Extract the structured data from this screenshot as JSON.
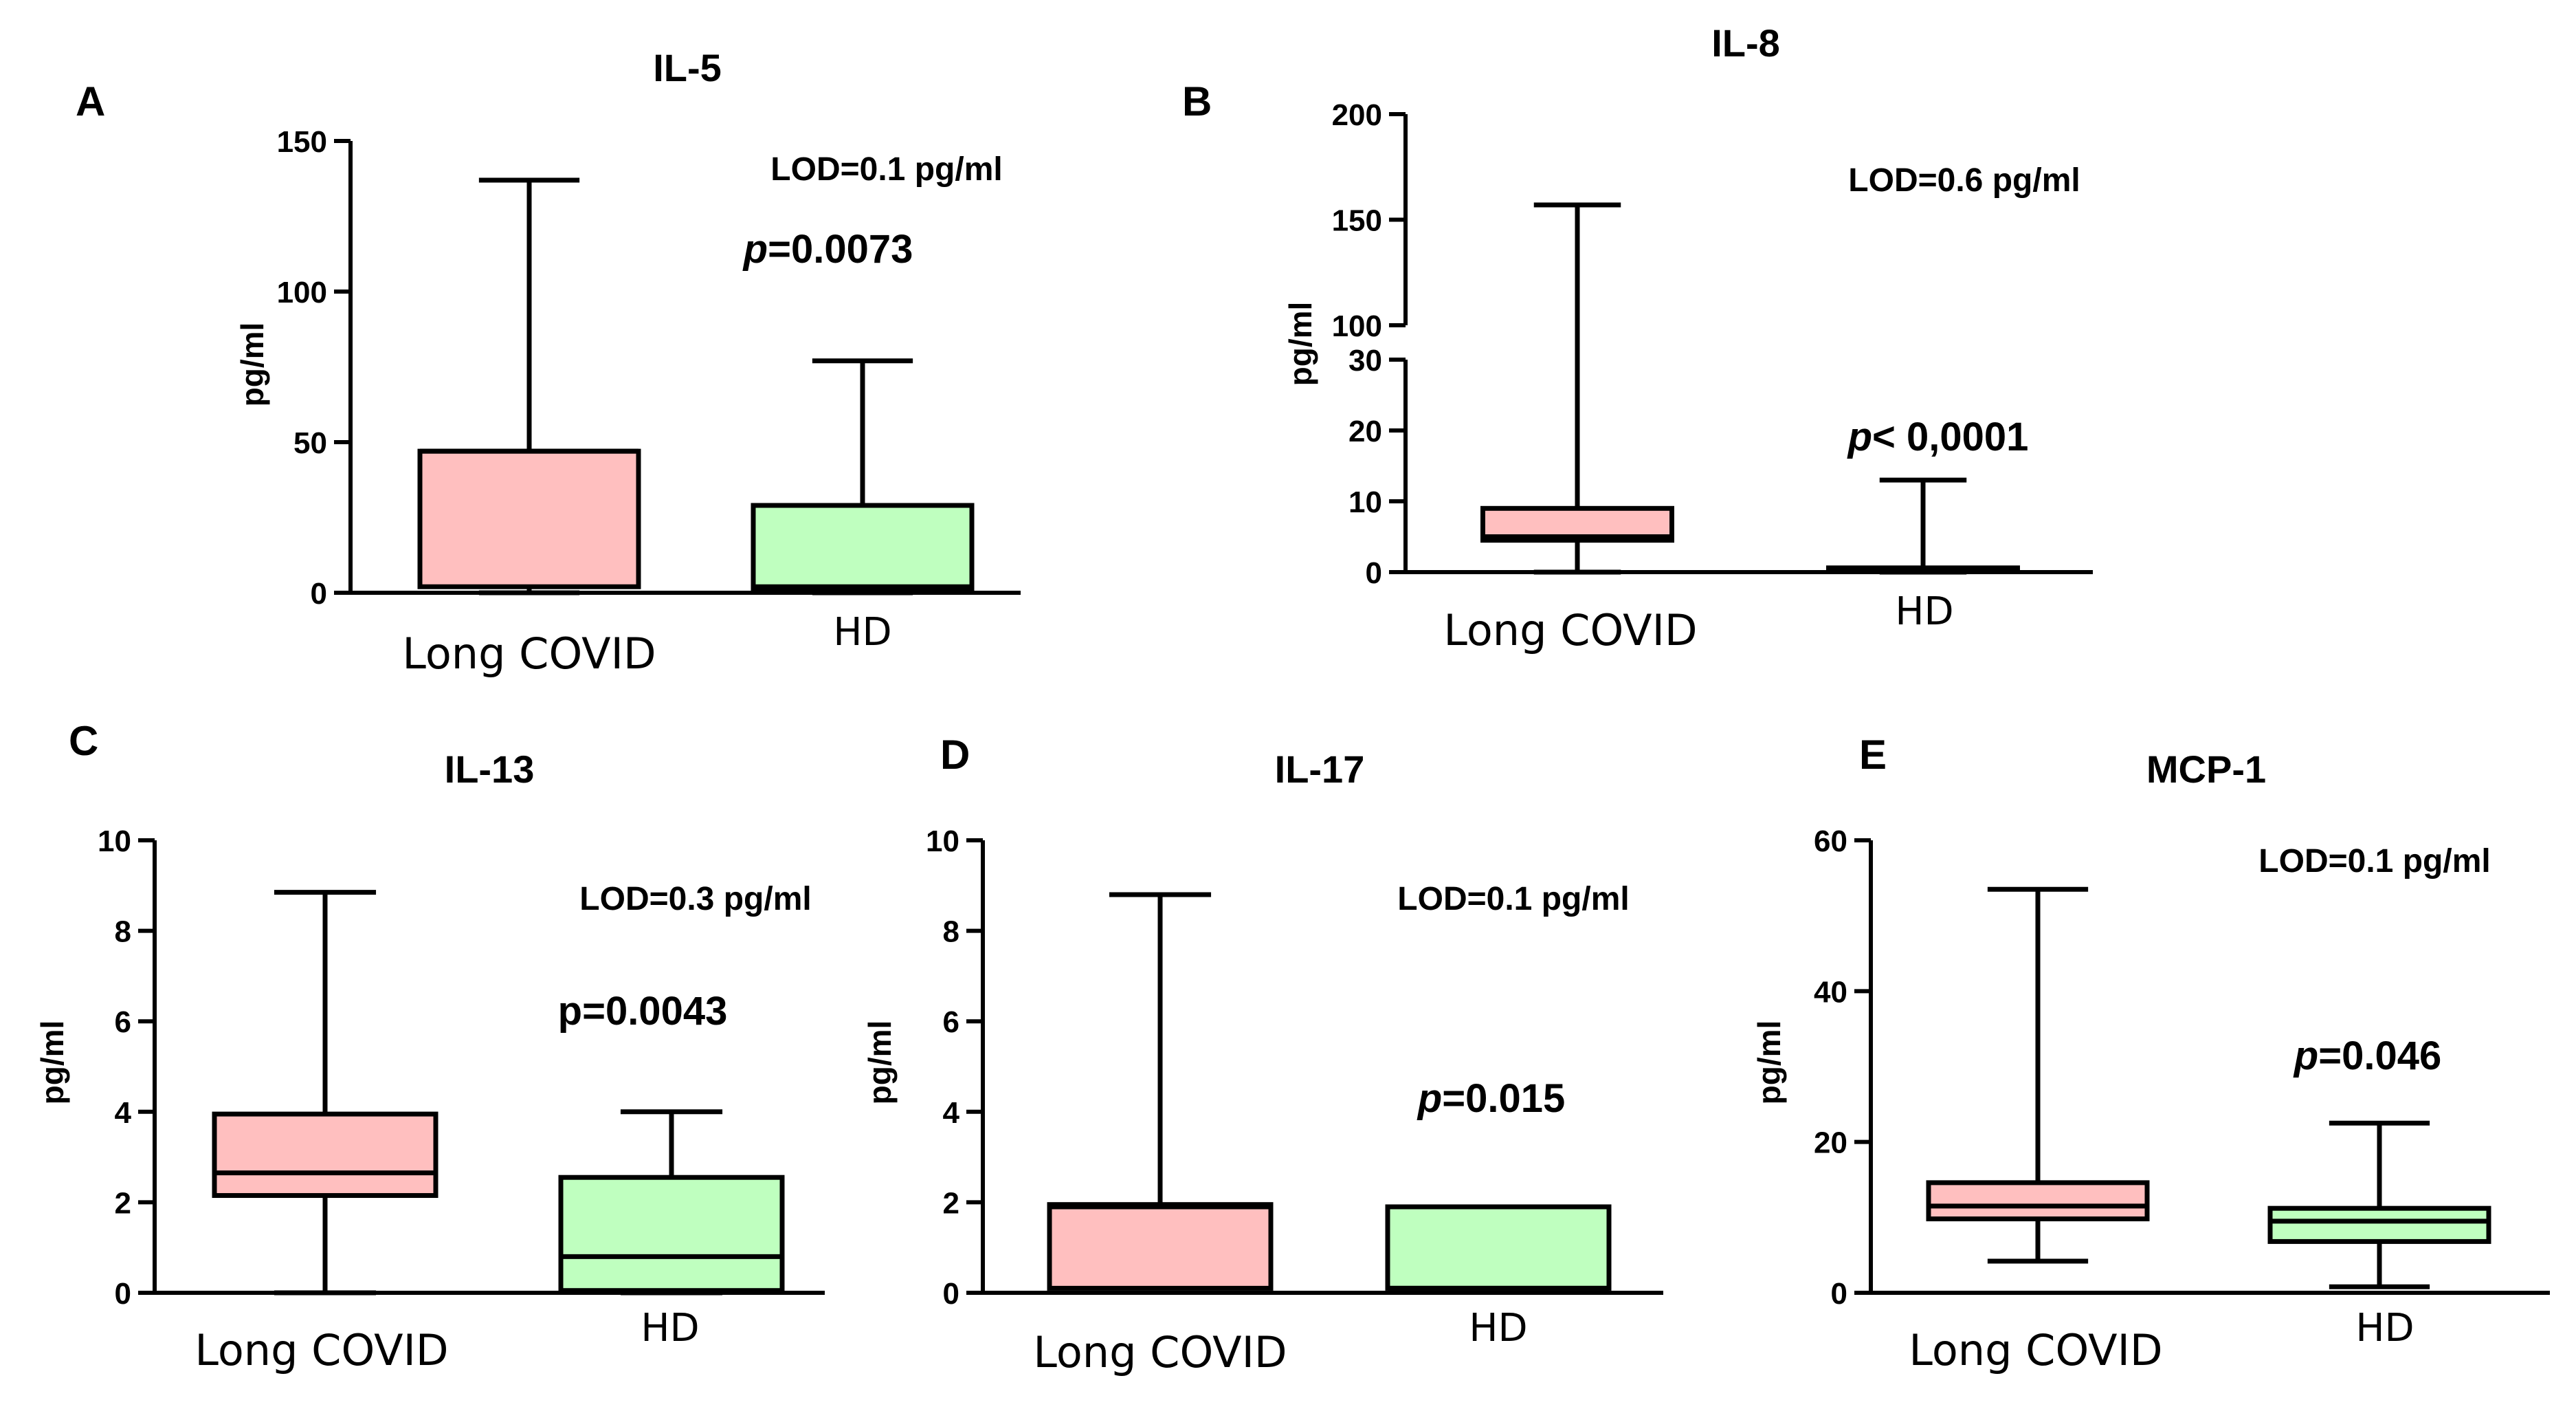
{
  "figure": {
    "groups": [
      "Long COVID",
      "HD"
    ]
  },
  "colors": {
    "long_covid_fill": "#FFBFBF",
    "hd_fill": "#BFFFBF",
    "stroke": "#000000"
  },
  "chart_data": [
    {
      "panel": "A",
      "type": "box",
      "title": "IL-5",
      "ylabel": "pg/ml",
      "ylim": [
        0,
        150
      ],
      "yticks": [
        0,
        50,
        100,
        150
      ],
      "annotation": "LOD=0.1 pg/ml",
      "p_prefix": "p",
      "p_rest": "=0.0073",
      "boxes": [
        {
          "group": "Long COVID",
          "min": 0,
          "q1": 2,
          "median": 47,
          "q3": 47,
          "max": 137
        },
        {
          "group": "HD",
          "min": 0,
          "q1": 1,
          "median": 2,
          "q3": 29,
          "max": 77
        }
      ]
    },
    {
      "panel": "B",
      "type": "box",
      "title": "IL-8",
      "ylabel": "pg/ml",
      "ylim": [
        0,
        200
      ],
      "axis_break": [
        30,
        100
      ],
      "yticks": [
        0,
        10,
        20,
        30,
        100,
        150,
        200
      ],
      "annotation": "LOD=0.6 pg/ml",
      "p_prefix": "p",
      "p_rest": "< 0,0001",
      "boxes": [
        {
          "group": "Long COVID",
          "min": 0,
          "q1": 4.5,
          "median": 5,
          "q3": 9,
          "max": 157
        },
        {
          "group": "HD",
          "min": 0,
          "q1": 0.2,
          "median": 0.5,
          "q3": 0.6,
          "max": 13
        }
      ]
    },
    {
      "panel": "C",
      "type": "box",
      "title": "IL-13",
      "ylabel": "pg/ml",
      "ylim": [
        0,
        10
      ],
      "yticks": [
        0,
        2,
        4,
        6,
        8,
        10
      ],
      "annotation": "LOD=0.3 pg/ml",
      "p_prefix": "",
      "p_rest": "p=0.0043",
      "boxes": [
        {
          "group": "Long COVID",
          "min": 0,
          "q1": 2.15,
          "median": 2.65,
          "q3": 3.95,
          "max": 8.85
        },
        {
          "group": "HD",
          "min": 0,
          "q1": 0.05,
          "median": 0.8,
          "q3": 2.55,
          "max": 4.0
        }
      ]
    },
    {
      "panel": "D",
      "type": "box",
      "title": "IL-17",
      "ylabel": "pg/ml",
      "ylim": [
        0,
        10
      ],
      "yticks": [
        0,
        2,
        4,
        6,
        8,
        10
      ],
      "annotation": "LOD=0.1 pg/ml",
      "p_prefix": "p",
      "p_rest": "=0.015",
      "boxes": [
        {
          "group": "Long COVID",
          "min": 0.1,
          "q1": 0.1,
          "median": 1.9,
          "q3": 1.95,
          "max": 8.8
        },
        {
          "group": "HD",
          "min": 0.1,
          "q1": 0.1,
          "median": 0.1,
          "q3": 1.9,
          "max": 1.9
        }
      ]
    },
    {
      "panel": "E",
      "type": "box",
      "title": "MCP-1",
      "ylabel": "pg/ml",
      "ylim": [
        0,
        60
      ],
      "yticks": [
        0,
        20,
        40,
        60
      ],
      "annotation": "LOD=0.1 pg/ml",
      "p_prefix": "p",
      "p_rest": "=0.046",
      "boxes": [
        {
          "group": "Long COVID",
          "min": 4.2,
          "q1": 9.8,
          "median": 11.5,
          "q3": 14.6,
          "max": 53.5
        },
        {
          "group": "HD",
          "min": 0.8,
          "q1": 6.8,
          "median": 9.5,
          "q3": 11.2,
          "max": 22.5
        }
      ]
    }
  ]
}
